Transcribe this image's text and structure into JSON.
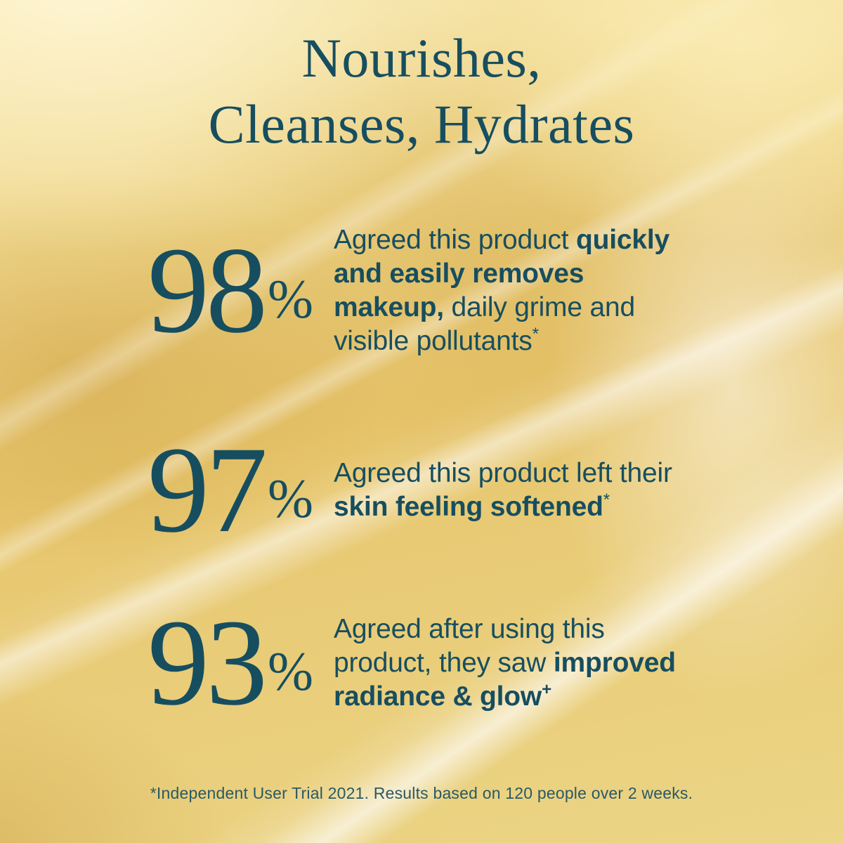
{
  "header": {
    "title_line1": "Nourishes,",
    "title_line2": "Cleanses, Hydrates"
  },
  "stats": [
    {
      "value": "98",
      "unit": "%",
      "line1_normal": "Agreed this product ",
      "line1_bold": "quickly",
      "line2_bold": "and easily removes",
      "line3_bold": "makeup,",
      "line3_normal": " daily grime and",
      "line4_normal": "visible pollutants",
      "footnote_mark": "*"
    },
    {
      "value": "97",
      "unit": "%",
      "line1_normal": "Agreed this product left their",
      "line2_bold": "skin feeling softened",
      "footnote_mark": "*"
    },
    {
      "value": "93",
      "unit": "%",
      "line1_normal": "Agreed after using this",
      "line2_normal": "product, they saw ",
      "line2_bold": "improved",
      "line3_bold": "radiance & glow",
      "footnote_mark": "+"
    }
  ],
  "footer": {
    "disclaimer": "*Independent User Trial 2021. Results based on 120 people over 2 weeks."
  },
  "colors": {
    "text_teal": "#174e5f",
    "gold_base": "#e9cb74",
    "gold_light": "#f7e6aa",
    "gold_deep": "#cf9f44",
    "highlight_white": "#ffffff"
  }
}
